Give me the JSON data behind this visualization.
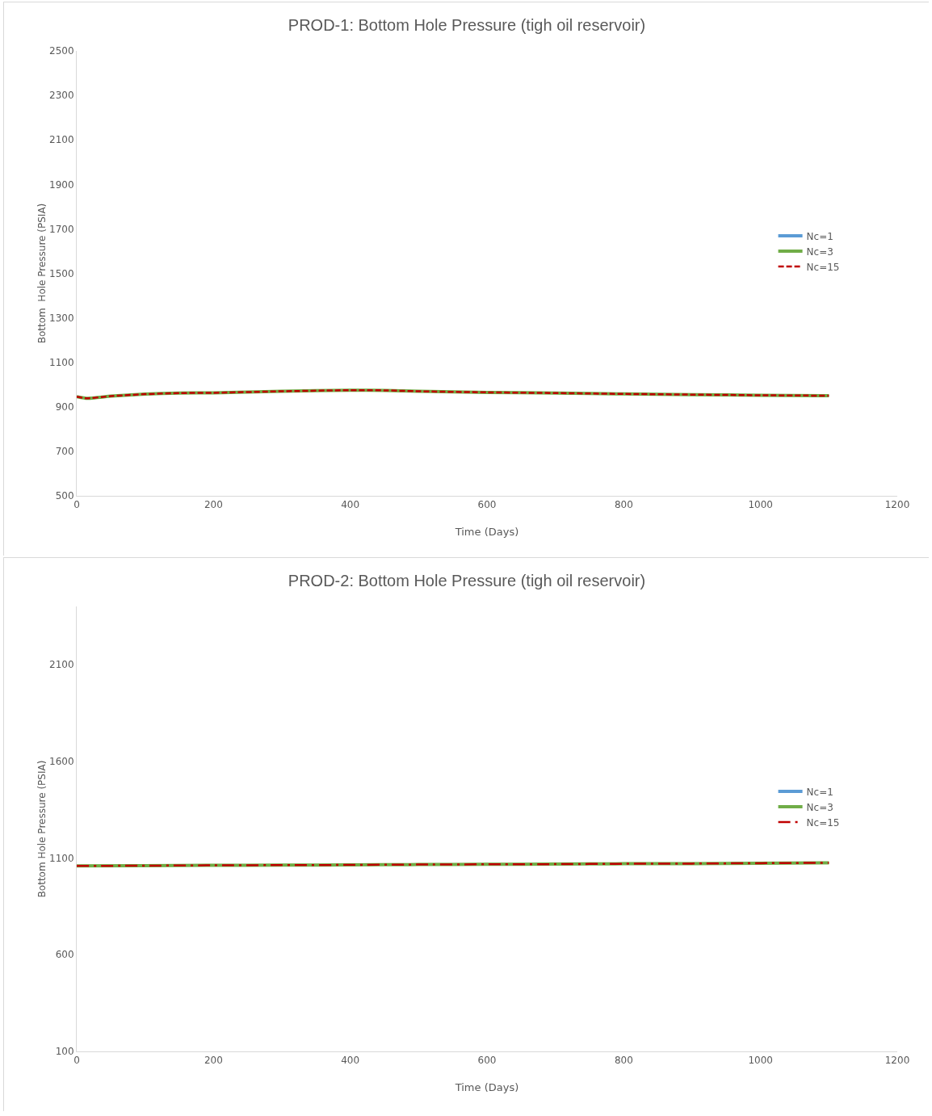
{
  "chart_data": [
    {
      "type": "line",
      "title": "PROD-1: Bottom Hole Pressure (tigh oil reservoir)",
      "xlabel": "Time (Days)",
      "ylabel": "Bottom  Hole Pressure (PSIA)",
      "x": [
        0,
        15,
        50,
        100,
        150,
        200,
        300,
        400,
        450,
        500,
        600,
        700,
        800,
        900,
        1000,
        1100
      ],
      "series": [
        {
          "name": "Nc=1",
          "color": "#5b9bd5",
          "line_style": "solid",
          "values": [
            null,
            null,
            null,
            null,
            null,
            null,
            null,
            null,
            null,
            null,
            null,
            null,
            null,
            null,
            null,
            null
          ]
        },
        {
          "name": "Nc=3",
          "color": "#70ad47",
          "line_style": "solid",
          "values": [
            946,
            938,
            948,
            957,
            962,
            963,
            970,
            975,
            974,
            970,
            965,
            962,
            958,
            955,
            952,
            950
          ]
        },
        {
          "name": "Nc=15",
          "color": "#c00000",
          "line_style": "dashed",
          "values": [
            946,
            938,
            948,
            957,
            962,
            963,
            970,
            975,
            974,
            970,
            965,
            962,
            958,
            955,
            952,
            950
          ]
        }
      ],
      "xlim": [
        0,
        1200
      ],
      "xticks": [
        0,
        200,
        400,
        600,
        800,
        1000,
        1200
      ],
      "ylim": [
        500,
        2500
      ],
      "yticks": [
        500,
        700,
        900,
        1100,
        1300,
        1500,
        1700,
        1900,
        2100,
        2300,
        2500
      ],
      "grid": false,
      "legend": "right",
      "marker": "none"
    },
    {
      "type": "line",
      "title": "PROD-2: Bottom Hole Pressure (tigh oil reservoir)",
      "xlabel": "Time (Days)",
      "ylabel": "Bottom Hole Pressure (PSIA)",
      "x": [
        0,
        100,
        200,
        300,
        400,
        500,
        600,
        700,
        800,
        900,
        1000,
        1100
      ],
      "series": [
        {
          "name": "Nc=1",
          "color": "#5b9bd5",
          "line_style": "solid",
          "values": [
            null,
            null,
            null,
            null,
            null,
            null,
            null,
            null,
            null,
            null,
            null,
            null
          ]
        },
        {
          "name": "Nc=3",
          "color": "#70ad47",
          "line_style": "solid",
          "values": [
            1059,
            1060,
            1062,
            1063,
            1064,
            1066,
            1067,
            1068,
            1070,
            1071,
            1073,
            1075
          ]
        },
        {
          "name": "Nc=15",
          "color": "#c00000",
          "line_style": "dashdot",
          "values": [
            1059,
            1060,
            1062,
            1063,
            1064,
            1066,
            1067,
            1068,
            1070,
            1071,
            1073,
            1075
          ]
        }
      ],
      "xlim": [
        0,
        1200
      ],
      "xticks": [
        0,
        200,
        400,
        600,
        800,
        1000,
        1200
      ],
      "ylim": [
        100,
        2400
      ],
      "yticks": [
        100,
        600,
        1100,
        1600,
        2100
      ],
      "grid": false,
      "legend": "right",
      "marker": "none"
    }
  ]
}
